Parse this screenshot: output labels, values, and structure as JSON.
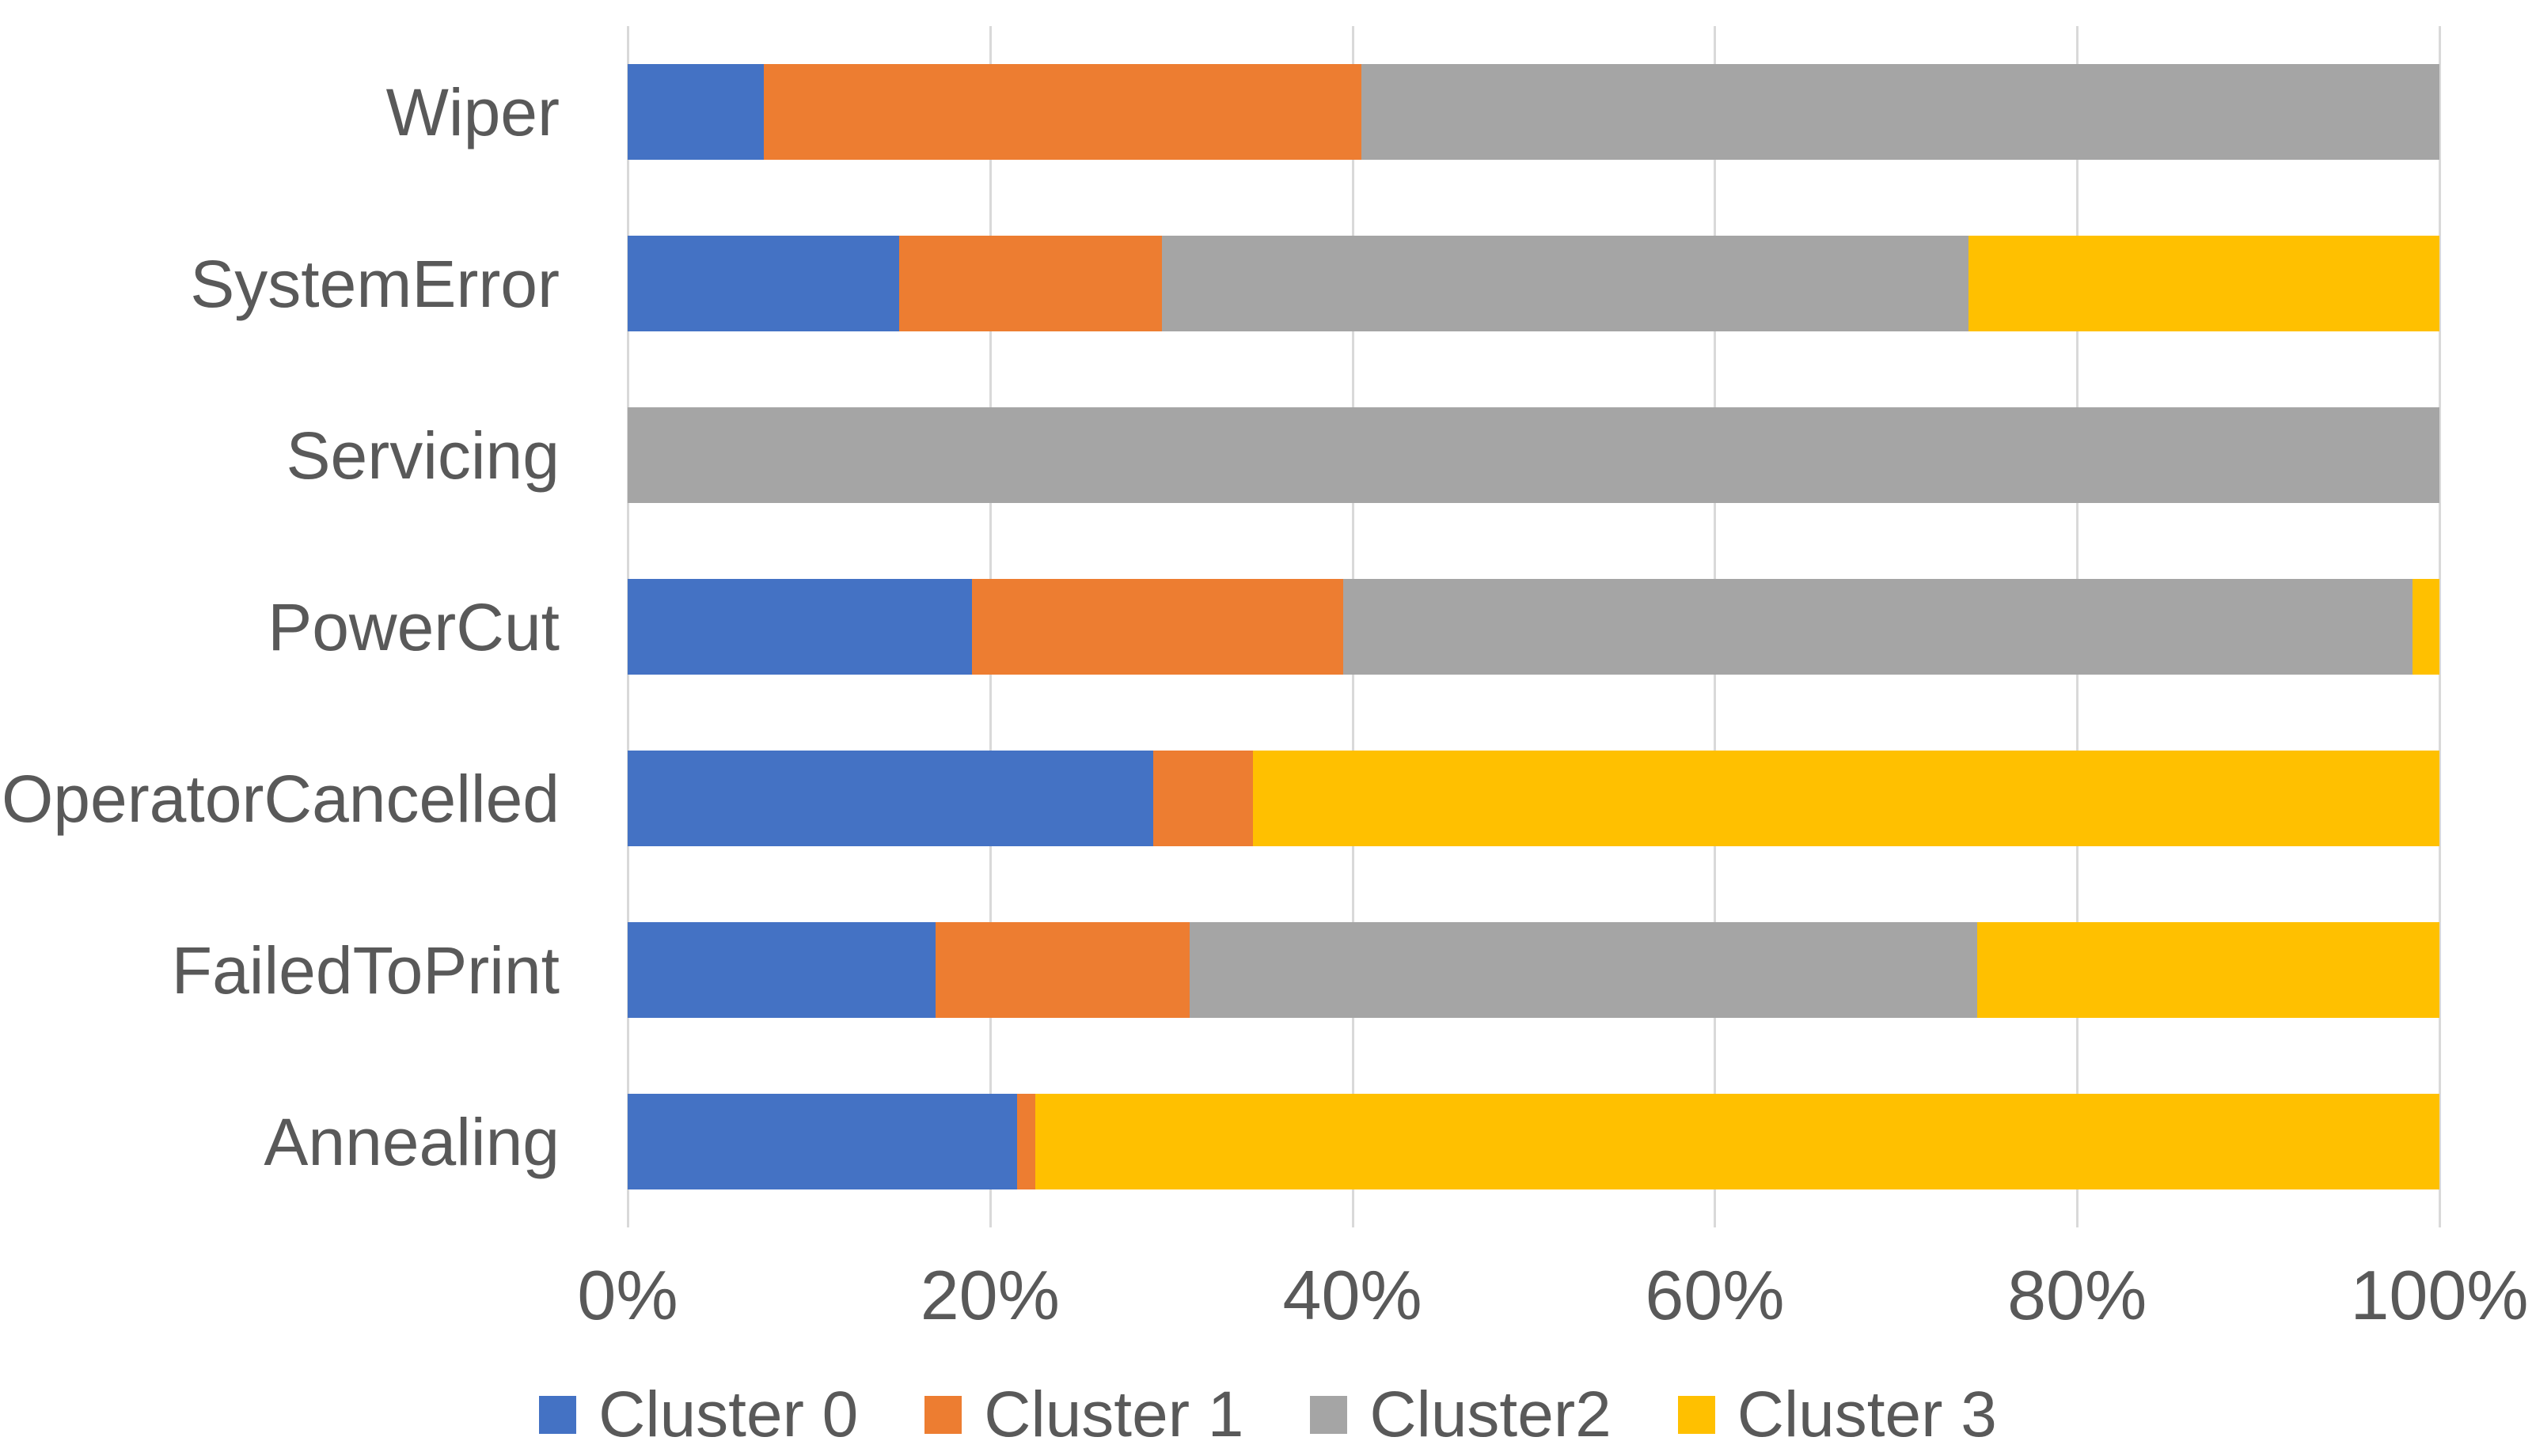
{
  "chart_data": {
    "type": "bar",
    "orientation": "horizontal",
    "stacked": true,
    "stacked_to_100_percent": true,
    "title": "",
    "xlabel": "",
    "ylabel": "",
    "grid": "vertical",
    "legend_position": "bottom",
    "xlim": [
      0,
      100
    ],
    "x_ticks": [
      "0%",
      "20%",
      "40%",
      "60%",
      "80%",
      "100%"
    ],
    "x_tick_values": [
      0,
      20,
      40,
      60,
      80,
      100
    ],
    "categories": [
      "Wiper",
      "SystemError",
      "Servicing",
      "PowerCut",
      "OperatorCancelled",
      "FailedToPrint",
      "Annealing"
    ],
    "series": [
      {
        "name": "Cluster 0",
        "color": "#4472C4",
        "values": [
          7.5,
          15,
          0,
          19,
          29,
          17,
          21.5
        ]
      },
      {
        "name": "Cluster 1",
        "color": "#ED7D31",
        "values": [
          33,
          14.5,
          0,
          20.5,
          5.5,
          14,
          1
        ]
      },
      {
        "name": "Cluster2",
        "color": "#A5A5A5",
        "values": [
          59.5,
          44.5,
          100,
          59,
          0,
          43.5,
          0
        ]
      },
      {
        "name": "Cluster 3",
        "color": "#FFC000",
        "values": [
          0,
          26,
          0,
          1.5,
          65.5,
          25.5,
          77.5
        ]
      }
    ]
  },
  "styles": {
    "background": "#FFFFFF",
    "text_color": "#595959",
    "gridline_color": "#D9D9D9"
  }
}
